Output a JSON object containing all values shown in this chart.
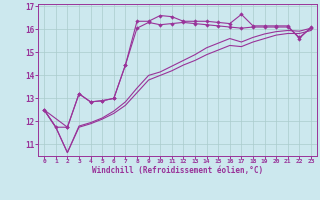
{
  "xlabel": "Windchill (Refroidissement éolien,°C)",
  "bg_color": "#cce8ee",
  "grid_color": "#aacccc",
  "line_color": "#993399",
  "xlim": [
    -0.5,
    23.5
  ],
  "ylim": [
    10.5,
    17.1
  ],
  "xticks": [
    0,
    1,
    2,
    3,
    4,
    5,
    6,
    7,
    8,
    9,
    10,
    11,
    12,
    13,
    14,
    15,
    16,
    17,
    18,
    19,
    20,
    21,
    22,
    23
  ],
  "yticks": [
    11,
    12,
    13,
    14,
    15,
    16,
    17
  ],
  "line1_x": [
    0,
    1,
    2,
    3,
    4,
    5,
    6,
    7,
    8,
    9,
    10,
    11,
    12,
    13,
    14,
    15,
    16,
    17,
    18,
    19,
    20,
    21,
    22,
    23
  ],
  "line1_y": [
    12.5,
    11.75,
    11.75,
    13.2,
    12.85,
    12.9,
    13.0,
    14.45,
    16.05,
    16.3,
    16.2,
    16.25,
    16.3,
    16.25,
    16.2,
    16.15,
    16.1,
    16.05,
    16.1,
    16.1,
    16.1,
    16.1,
    15.65,
    16.05
  ],
  "line2_x": [
    0,
    1,
    2,
    3,
    4,
    5,
    6,
    7,
    8,
    9,
    10,
    11,
    12,
    13,
    14,
    15,
    16,
    17,
    18,
    19,
    20,
    21,
    22,
    23
  ],
  "line2_y": [
    12.5,
    11.75,
    10.65,
    11.75,
    11.9,
    12.1,
    12.35,
    12.7,
    13.25,
    13.8,
    14.0,
    14.2,
    14.45,
    14.65,
    14.9,
    15.1,
    15.3,
    15.25,
    15.45,
    15.6,
    15.75,
    15.82,
    15.82,
    15.95
  ],
  "line3_x": [
    0,
    1,
    2,
    3,
    4,
    5,
    6,
    7,
    8,
    9,
    10,
    11,
    12,
    13,
    14,
    15,
    16,
    17,
    18,
    19,
    20,
    21,
    22,
    23
  ],
  "line3_y": [
    12.5,
    11.75,
    10.65,
    11.8,
    11.95,
    12.15,
    12.45,
    12.85,
    13.45,
    14.0,
    14.15,
    14.4,
    14.65,
    14.9,
    15.2,
    15.4,
    15.6,
    15.45,
    15.65,
    15.8,
    15.9,
    15.95,
    15.92,
    16.05
  ],
  "line4_x": [
    0,
    2,
    3,
    4,
    5,
    6,
    7,
    8,
    9,
    10,
    11,
    12,
    13,
    14,
    15,
    16,
    17,
    18,
    19,
    20,
    21,
    22,
    23
  ],
  "line4_y": [
    12.5,
    11.75,
    13.2,
    12.85,
    12.9,
    13.0,
    14.45,
    16.35,
    16.35,
    16.6,
    16.55,
    16.35,
    16.35,
    16.35,
    16.3,
    16.25,
    16.65,
    16.15,
    16.15,
    16.15,
    16.15,
    15.6,
    16.1
  ]
}
